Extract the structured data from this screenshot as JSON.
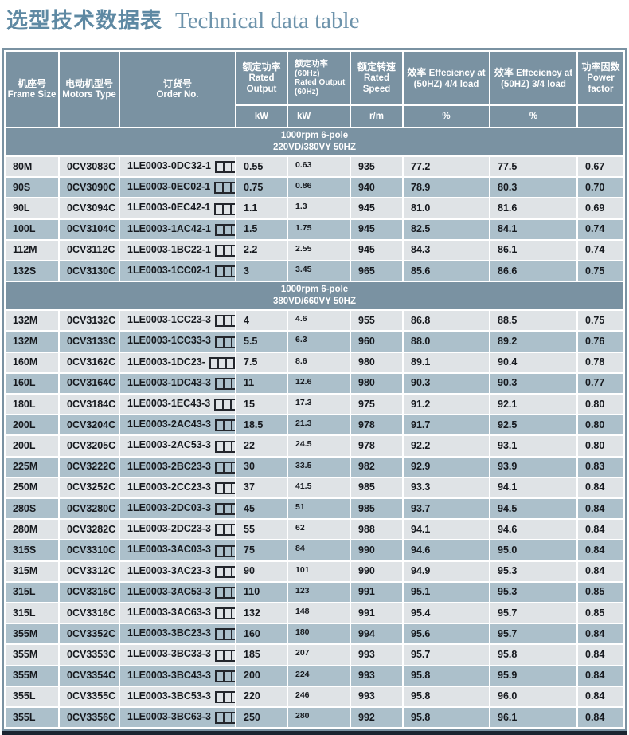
{
  "page": {
    "title_zh": "选型技术数据表",
    "title_en": "Technical data table"
  },
  "colors": {
    "header_bg": "#7a92a2",
    "row_light": "#dfe3e6",
    "row_dark": "#acc0cb",
    "header_text": "#ffffff",
    "data_text": "#16191e",
    "title_zh_color": "#5e89a3",
    "title_en_color": "#6d93ab",
    "bottom_border": "#1b2430",
    "gridline": "#ffffff"
  },
  "table": {
    "columns": [
      {
        "zh": "机座号",
        "en": "Frame Size",
        "unit": ""
      },
      {
        "zh": "电动机型号",
        "en": "Motors Type",
        "unit": ""
      },
      {
        "zh": "订货号",
        "en": "Order No.",
        "unit": ""
      },
      {
        "zh": "额定功率",
        "en": "Rated Output",
        "unit": "kW"
      },
      {
        "zh": "额定功率 (60Hz)",
        "en": "Rated Output (60Hz)",
        "unit": "kW"
      },
      {
        "zh": "额定转速",
        "en": "Rated Speed",
        "unit": "r/m"
      },
      {
        "zh": "效率",
        "en": "Effeciency at (50HZ) 4/4 load",
        "unit": "%"
      },
      {
        "zh": "效率",
        "en": "Effeciency at (50HZ) 3/4 load",
        "unit": "%"
      },
      {
        "zh": "功率因数",
        "en": "Power factor",
        "unit": ""
      }
    ],
    "fields": [
      "frame_size",
      "motors_type",
      "order_no",
      "rated_output_kw",
      "rated_output_60hz_kw",
      "rated_speed_rm",
      "efficiency_50hz_4_4_pct",
      "efficiency_50hz_3_4_pct",
      "power_factor"
    ],
    "order_no_suffix_boxes": 3,
    "sections": [
      {
        "header_line1": "1000rpm  6-pole",
        "header_line2": "220VD/380VY  50HZ",
        "rows": [
          [
            "80M",
            "0CV3083C",
            "1LE0003-0DC32-1",
            "0.55",
            "0.63",
            "935",
            "77.2",
            "77.5",
            "0.67"
          ],
          [
            "90S",
            "0CV3090C",
            "1LE0003-0EC02-1",
            "0.75",
            "0.86",
            "940",
            "78.9",
            "80.3",
            "0.70"
          ],
          [
            "90L",
            "0CV3094C",
            "1LE0003-0EC42-1",
            "1.1",
            "1.3",
            "945",
            "81.0",
            "81.6",
            "0.69"
          ],
          [
            "100L",
            "0CV3104C",
            "1LE0003-1AC42-1",
            "1.5",
            "1.75",
            "945",
            "82.5",
            "84.1",
            "0.74"
          ],
          [
            "112M",
            "0CV3112C",
            "1LE0003-1BC22-1",
            "2.2",
            "2.55",
            "945",
            "84.3",
            "86.1",
            "0.74"
          ],
          [
            "132S",
            "0CV3130C",
            "1LE0003-1CC02-1",
            "3",
            "3.45",
            "965",
            "85.6",
            "86.6",
            "0.75"
          ]
        ]
      },
      {
        "header_line1": "1000rpm  6-pole",
        "header_line2": "380VD/660VY  50HZ",
        "rows": [
          [
            "132M",
            "0CV3132C",
            "1LE0003-1CC23-3",
            "4",
            "4.6",
            "955",
            "86.8",
            "88.5",
            "0.75"
          ],
          [
            "132M",
            "0CV3133C",
            "1LE0003-1CC33-3",
            "5.5",
            "6.3",
            "960",
            "88.0",
            "89.2",
            "0.76"
          ],
          [
            "160M",
            "0CV3162C",
            "1LE0003-1DC23-",
            "7.5",
            "8.6",
            "980",
            "89.1",
            "90.4",
            "0.78"
          ],
          [
            "160L",
            "0CV3164C",
            "1LE0003-1DC43-3",
            "11",
            "12.6",
            "980",
            "90.3",
            "90.3",
            "0.77"
          ],
          [
            "180L",
            "0CV3184C",
            "1LE0003-1EC43-3",
            "15",
            "17.3",
            "975",
            "91.2",
            "92.1",
            "0.80"
          ],
          [
            "200L",
            "0CV3204C",
            "1LE0003-2AC43-3",
            "18.5",
            "21.3",
            "978",
            "91.7",
            "92.5",
            "0.80"
          ],
          [
            "200L",
            "0CV3205C",
            "1LE0003-2AC53-3",
            "22",
            "24.5",
            "978",
            "92.2",
            "93.1",
            "0.80"
          ],
          [
            "225M",
            "0CV3222C",
            "1LE0003-2BC23-3",
            "30",
            "33.5",
            "982",
            "92.9",
            "93.9",
            "0.83"
          ],
          [
            "250M",
            "0CV3252C",
            "1LE0003-2CC23-3",
            "37",
            "41.5",
            "985",
            "93.3",
            "94.1",
            "0.84"
          ],
          [
            "280S",
            "0CV3280C",
            "1LE0003-2DC03-3",
            "45",
            "51",
            "985",
            "93.7",
            "94.5",
            "0.84"
          ],
          [
            "280M",
            "0CV3282C",
            "1LE0003-2DC23-3",
            "55",
            "62",
            "988",
            "94.1",
            "94.6",
            "0.84"
          ],
          [
            "315S",
            "0CV3310C",
            "1LE0003-3AC03-3",
            "75",
            "84",
            "990",
            "94.6",
            "95.0",
            "0.84"
          ],
          [
            "315M",
            "0CV3312C",
            "1LE0003-3AC23-3",
            "90",
            "101",
            "990",
            "94.9",
            "95.3",
            "0.84"
          ],
          [
            "315L",
            "0CV3315C",
            "1LE0003-3AC53-3",
            "110",
            "123",
            "991",
            "95.1",
            "95.3",
            "0.85"
          ],
          [
            "315L",
            "0CV3316C",
            "1LE0003-3AC63-3",
            "132",
            "148",
            "991",
            "95.4",
            "95.7",
            "0.85"
          ],
          [
            "355M",
            "0CV3352C",
            "1LE0003-3BC23-3",
            "160",
            "180",
            "994",
            "95.6",
            "95.7",
            "0.84"
          ],
          [
            "355M",
            "0CV3353C",
            "1LE0003-3BC33-3",
            "185",
            "207",
            "993",
            "95.7",
            "95.8",
            "0.84"
          ],
          [
            "355M",
            "0CV3354C",
            "1LE0003-3BC43-3",
            "200",
            "224",
            "993",
            "95.8",
            "95.9",
            "0.84"
          ],
          [
            "355L",
            "0CV3355C",
            "1LE0003-3BC53-3",
            "220",
            "246",
            "993",
            "95.8",
            "96.0",
            "0.84"
          ],
          [
            "355L",
            "0CV3356C",
            "1LE0003-3BC63-3",
            "250",
            "280",
            "992",
            "95.8",
            "96.1",
            "0.84"
          ]
        ]
      }
    ]
  }
}
